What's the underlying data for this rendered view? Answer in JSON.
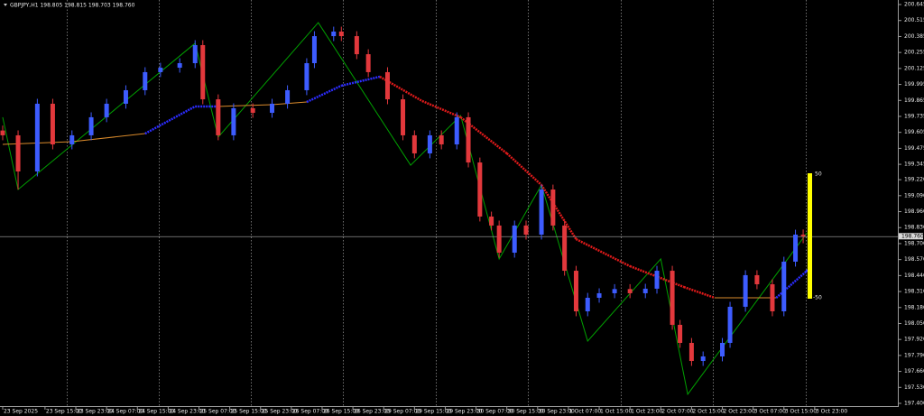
{
  "chart_data": {
    "type": "candlestick",
    "title": "GBPJPY,H1 198.805 198.815 198.703 198.760",
    "x": [
      0,
      4,
      9,
      13,
      18,
      23,
      27,
      32,
      37,
      41,
      46,
      50,
      52,
      56,
      60,
      65,
      70,
      74,
      79,
      81,
      86,
      88,
      92,
      95,
      100,
      104,
      107,
      111,
      114,
      118,
      121,
      124,
      127,
      129,
      133,
      136,
      140,
      143,
      146,
      149,
      152,
      155,
      159,
      163,
      167,
      170,
      174,
      176,
      179,
      182,
      187,
      189,
      193,
      196,
      200,
      203,
      206,
      208
    ],
    "open": [
      199.62,
      199.581,
      199.287,
      199.838,
      199.507,
      199.581,
      199.728,
      199.838,
      199.948,
      200.095,
      200.131,
      200.168,
      200.315,
      199.874,
      199.581,
      199.801,
      199.764,
      199.838,
      199.948,
      200.168,
      200.388,
      200.425,
      200.388,
      200.241,
      200.095,
      199.874,
      199.581,
      199.434,
      199.581,
      199.507,
      199.728,
      199.36,
      198.92,
      198.847,
      198.626,
      198.847,
      198.773,
      199.14,
      198.847,
      198.479,
      198.149,
      198.259,
      198.296,
      198.33,
      198.296,
      198.333,
      198.479,
      198.039,
      197.892,
      197.745,
      197.782,
      197.892,
      198.186,
      198.443,
      198.369,
      198.149,
      198.553,
      198.773
    ],
    "high": [
      199.66,
      199.621,
      199.878,
      199.878,
      199.621,
      199.768,
      199.878,
      199.988,
      200.135,
      200.171,
      200.208,
      200.355,
      200.355,
      199.914,
      199.841,
      199.841,
      199.878,
      199.988,
      200.208,
      200.428,
      200.465,
      200.465,
      200.428,
      200.281,
      200.135,
      199.914,
      199.621,
      199.621,
      199.621,
      199.768,
      199.768,
      199.4,
      198.96,
      198.887,
      198.887,
      198.887,
      199.18,
      199.18,
      198.887,
      198.519,
      198.299,
      198.336,
      198.37,
      198.37,
      198.373,
      198.519,
      198.519,
      198.079,
      197.932,
      197.822,
      197.932,
      198.226,
      198.483,
      198.483,
      198.409,
      198.593,
      198.813,
      198.815
    ],
    "low": [
      199.541,
      199.14,
      199.247,
      199.467,
      199.467,
      199.541,
      199.688,
      199.798,
      199.908,
      200.055,
      200.091,
      200.128,
      199.834,
      199.541,
      199.541,
      199.724,
      199.724,
      199.798,
      199.908,
      200.128,
      200.348,
      200.348,
      200.201,
      200.055,
      199.834,
      199.541,
      199.394,
      199.394,
      199.467,
      199.467,
      199.32,
      198.88,
      198.807,
      198.586,
      198.586,
      198.733,
      198.733,
      198.807,
      198.439,
      198.109,
      198.109,
      198.219,
      198.256,
      198.256,
      198.256,
      198.293,
      197.999,
      197.852,
      197.705,
      197.705,
      197.742,
      197.852,
      198.146,
      198.329,
      198.109,
      198.109,
      198.513,
      198.703
    ],
    "close": [
      199.581,
      199.287,
      199.838,
      199.507,
      199.581,
      199.728,
      199.838,
      199.948,
      200.095,
      200.131,
      200.168,
      200.315,
      199.874,
      199.581,
      199.801,
      199.764,
      199.838,
      199.948,
      200.168,
      200.388,
      200.425,
      200.388,
      200.241,
      200.095,
      199.874,
      199.581,
      199.434,
      199.581,
      199.507,
      199.728,
      199.36,
      198.92,
      198.847,
      198.626,
      198.847,
      198.773,
      199.14,
      198.847,
      198.479,
      198.149,
      198.259,
      198.296,
      198.33,
      198.296,
      198.333,
      198.479,
      198.039,
      197.892,
      197.745,
      197.782,
      197.892,
      198.186,
      198.443,
      198.369,
      198.149,
      198.553,
      198.773,
      198.76
    ],
    "up_color": "#3d5cff",
    "down_color": "#e2383c",
    "zigzag": {
      "color": "#00a000",
      "x": [
        0,
        4,
        50,
        56,
        82,
        106,
        119,
        129,
        140,
        152,
        171,
        178,
        209
      ],
      "values": [
        199.728,
        199.14,
        200.33,
        199.566,
        200.498,
        199.338,
        199.742,
        198.575,
        199.177,
        197.907,
        198.575,
        197.474,
        198.788
      ]
    },
    "ma": {
      "x": [
        0,
        18,
        37,
        50,
        56,
        70,
        79,
        88,
        98,
        109,
        119,
        131,
        140,
        149,
        163,
        177,
        185,
        201,
        209
      ],
      "values": [
        199.507,
        199.529,
        199.595,
        199.816,
        199.816,
        199.83,
        199.852,
        199.985,
        200.058,
        199.86,
        199.728,
        199.434,
        199.177,
        198.736,
        198.516,
        198.347,
        198.259,
        198.259,
        198.479
      ],
      "colors": [
        "#d98a2b",
        "#d98a2b",
        "#2c2cff",
        "#2c2cff",
        "#d98a2b",
        "#d98a2b",
        "#2c2cff",
        "#2c2cff",
        "#e01a1a",
        "#e01a1a",
        "#e01a1a",
        "#e01a1a",
        "#e01a1a",
        "#e01a1a",
        "#e01a1a",
        "#e01a1a",
        "#d98a2b",
        "#2c2cff",
        "#2c2cff"
      ]
    },
    "last_price": {
      "value": 198.76,
      "label": "198.760"
    },
    "indicator": {
      "color": "#ffff00",
      "top_label": "50",
      "bottom_label": "-50"
    },
    "xlim": [
      -0.7,
      232.6
    ],
    "ylim": [
      197.378,
      200.682
    ],
    "xticks": [
      {
        "value": 0,
        "label": "23 Sep 2025"
      },
      {
        "value": 11,
        "label": "23 Sep 15:00"
      },
      {
        "value": 19,
        "label": "23 Sep 23:00"
      },
      {
        "value": 27,
        "label": "24 Sep 07:00"
      },
      {
        "value": 35,
        "label": "24 Sep 15:00"
      },
      {
        "value": 43,
        "label": "24 Sep 23:00"
      },
      {
        "value": 51,
        "label": "25 Sep 07:00"
      },
      {
        "value": 59,
        "label": "25 Sep 15:00"
      },
      {
        "value": 67,
        "label": "25 Sep 23:00"
      },
      {
        "value": 75,
        "label": "26 Sep 07:00"
      },
      {
        "value": 83,
        "label": "26 Sep 15:00"
      },
      {
        "value": 91,
        "label": "26 Sep 23:00"
      },
      {
        "value": 99,
        "label": "29 Sep 07:00"
      },
      {
        "value": 107,
        "label": "29 Sep 15:00"
      },
      {
        "value": 115,
        "label": "29 Sep 23:00"
      },
      {
        "value": 123,
        "label": "30 Sep 07:00"
      },
      {
        "value": 131,
        "label": "30 Sep 15:00"
      },
      {
        "value": 139,
        "label": "30 Sep 23:00"
      },
      {
        "value": 147,
        "label": "1 Oct 07:00"
      },
      {
        "value": 155,
        "label": "1 Oct 15:00"
      },
      {
        "value": 163,
        "label": "1 Oct 23:00"
      },
      {
        "value": 171,
        "label": "2 Oct 07:00"
      },
      {
        "value": 179,
        "label": "2 Oct 15:00"
      },
      {
        "value": 187,
        "label": "2 Oct 23:00"
      },
      {
        "value": 195,
        "label": "3 Oct 07:00"
      },
      {
        "value": 203,
        "label": "3 Oct 15:00"
      },
      {
        "value": 211,
        "label": "3 Oct 23:00"
      }
    ],
    "yticks": [
      200.645,
      200.515,
      200.385,
      200.255,
      200.125,
      199.995,
      199.865,
      199.735,
      199.605,
      199.475,
      199.345,
      {
        "value": 199.22,
        "label": "199.220"
      },
      {
        "value": 199.09,
        "label": "199.090"
      },
      {
        "value": 198.96,
        "label": "198.960"
      },
      {
        "value": 198.83,
        "label": "198.830"
      },
      {
        "value": 198.7,
        "label": "198.700"
      },
      {
        "value": 198.57,
        "label": "198.570"
      },
      {
        "value": 198.44,
        "label": "198.440"
      },
      {
        "value": 198.31,
        "label": "198.310"
      },
      {
        "value": 198.18,
        "label": "198.180"
      },
      {
        "value": 198.05,
        "label": "198.050"
      },
      {
        "value": 197.92,
        "label": "197.920"
      },
      {
        "value": 197.79,
        "label": "197.790"
      },
      {
        "value": 197.66,
        "label": "197.660"
      },
      {
        "value": 197.53,
        "label": "197.530"
      },
      {
        "value": 197.4,
        "label": "197.400"
      }
    ],
    "grid": false
  }
}
